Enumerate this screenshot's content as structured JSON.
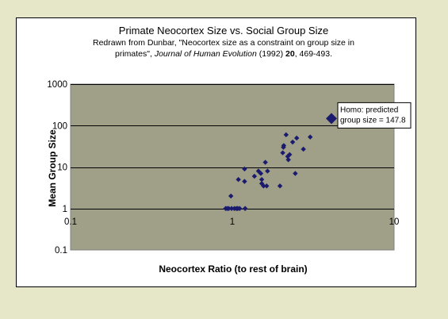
{
  "colors": {
    "page_background": "#e6e6c8",
    "chart_background": "#ffffff",
    "plot_area": "#a09f87",
    "gridline": "#000000",
    "marker": "#1a1a6e"
  },
  "chart_data": {
    "type": "scatter",
    "title": "Primate Neocortex Size vs. Social Group Size",
    "subtitle": {
      "line1": "Redrawn from Dunbar, \"Neocortex size as a constraint on group size in",
      "line2_pre": "primates\", ",
      "line2_journal": "Journal of Human Evolution",
      "line2_year": " (1992) ",
      "line2_volume": "20",
      "line2_pages": ", 469-493."
    },
    "xlabel": "Neocortex Ratio (to rest of brain)",
    "ylabel": "Mean Group Size",
    "x_scale": "log",
    "y_scale": "log",
    "xlim": [
      0.1,
      10
    ],
    "ylim": [
      0.1,
      1000
    ],
    "x_ticks": [
      {
        "value": 0.1,
        "label": "0.1"
      },
      {
        "value": 1,
        "label": "1"
      },
      {
        "value": 10,
        "label": "10"
      }
    ],
    "y_ticks": [
      {
        "value": 0.1,
        "label": "0.1"
      },
      {
        "value": 1,
        "label": "1"
      },
      {
        "value": 10,
        "label": "10"
      },
      {
        "value": 100,
        "label": "100"
      },
      {
        "value": 1000,
        "label": "1000"
      }
    ],
    "grid": "horizontal major gridlines",
    "series": [
      {
        "points": [
          [
            0.91,
            1.0
          ],
          [
            0.93,
            1.0
          ],
          [
            0.95,
            1.0
          ],
          [
            0.99,
            1.0
          ],
          [
            0.98,
            2.0
          ],
          [
            1.03,
            1.0
          ],
          [
            1.06,
            1.0
          ],
          [
            1.08,
            1.0
          ],
          [
            1.11,
            1.0
          ],
          [
            1.2,
            1.0
          ],
          [
            1.09,
            5.0
          ],
          [
            1.19,
            4.5
          ],
          [
            1.19,
            9.0
          ],
          [
            1.37,
            6.0
          ],
          [
            1.45,
            8.0
          ],
          [
            1.5,
            7.0
          ],
          [
            1.52,
            5.0
          ],
          [
            1.52,
            4.0
          ],
          [
            1.56,
            3.5
          ],
          [
            1.6,
            13.0
          ],
          [
            1.63,
            3.5
          ],
          [
            1.65,
            8.0
          ],
          [
            1.97,
            3.5
          ],
          [
            2.05,
            22.0
          ],
          [
            2.07,
            30.0
          ],
          [
            2.08,
            33.0
          ],
          [
            2.15,
            60.0
          ],
          [
            2.2,
            18.0
          ],
          [
            2.22,
            15.0
          ],
          [
            2.26,
            20.0
          ],
          [
            2.36,
            40.0
          ],
          [
            2.45,
            7.0
          ],
          [
            2.5,
            50.0
          ],
          [
            2.75,
            27.0
          ],
          [
            3.03,
            53.0
          ]
        ]
      }
    ],
    "highlight": {
      "x": 4.1,
      "y": 147.8,
      "annotation": [
        "Homo:  predicted",
        "group size = 147.8"
      ]
    }
  }
}
